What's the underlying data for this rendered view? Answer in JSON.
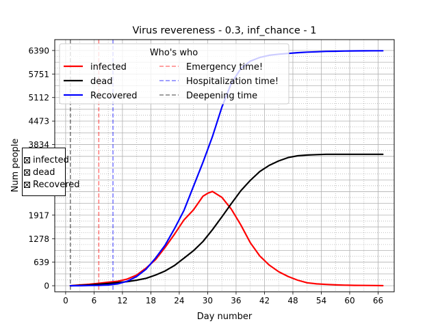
{
  "chart_data": {
    "type": "line",
    "title": "Virus revereness - 0.3, inf_chance - 1",
    "xlabel": "Day number",
    "ylabel": "Num people",
    "xlim": [
      -2.3,
      69.4
    ],
    "ylim": [
      -165,
      6685
    ],
    "xticks": [
      0,
      6,
      12,
      18,
      24,
      30,
      36,
      42,
      48,
      54,
      60,
      66
    ],
    "yticks": [
      0,
      639,
      1278,
      1917,
      2556,
      3195,
      3834,
      4473,
      5112,
      5751,
      6390
    ],
    "ytick_labels_shown": [
      "0",
      "639",
      "1278",
      "1917",
      "",
      "",
      "3834",
      "4473",
      "5112",
      "5751",
      "6390"
    ],
    "grid": true,
    "minor_grid": true,
    "legend_title": "Who's who",
    "legend_placement": "top-left",
    "series": [
      {
        "name": "infected",
        "color": "#ff0000",
        "x": [
          1,
          3,
          5,
          7,
          9,
          11,
          13,
          15,
          17,
          19,
          21,
          23,
          25,
          27,
          29,
          30,
          31,
          33,
          35,
          37,
          39,
          41,
          43,
          45,
          47,
          49,
          51,
          53,
          55,
          57,
          59,
          61,
          63,
          65,
          67
        ],
        "y": [
          0,
          20,
          40,
          65,
          95,
          120,
          180,
          290,
          480,
          710,
          1040,
          1400,
          1790,
          2060,
          2430,
          2510,
          2560,
          2400,
          2080,
          1650,
          1170,
          810,
          560,
          380,
          250,
          150,
          80,
          50,
          35,
          22,
          15,
          10,
          7,
          5,
          3
        ]
      },
      {
        "name": "dead",
        "color": "#000000",
        "x": [
          1,
          3,
          5,
          7,
          9,
          11,
          13,
          15,
          17,
          19,
          21,
          23,
          25,
          27,
          29,
          31,
          33,
          35,
          37,
          39,
          41,
          43,
          45,
          47,
          49,
          51,
          53,
          55,
          57,
          59,
          61,
          63,
          65,
          67
        ],
        "y": [
          0,
          10,
          20,
          40,
          60,
          85,
          110,
          150,
          200,
          290,
          400,
          550,
          750,
          950,
          1200,
          1520,
          1870,
          2230,
          2580,
          2860,
          3100,
          3270,
          3390,
          3480,
          3530,
          3550,
          3560,
          3570,
          3570,
          3570,
          3570,
          3570,
          3570,
          3570
        ]
      },
      {
        "name": "Recovered",
        "color": "#0000ff",
        "x": [
          1,
          3,
          5,
          7,
          9,
          11,
          13,
          15,
          17,
          19,
          21,
          23,
          25,
          27,
          29,
          31,
          33,
          35,
          37,
          39,
          41,
          43,
          45,
          47,
          49,
          51,
          53,
          55,
          57,
          59,
          61,
          63,
          65,
          67
        ],
        "y": [
          0,
          0,
          5,
          10,
          20,
          50,
          120,
          250,
          450,
          750,
          1100,
          1550,
          2050,
          2700,
          3350,
          4050,
          4850,
          5500,
          5900,
          6100,
          6200,
          6260,
          6290,
          6310,
          6330,
          6345,
          6355,
          6365,
          6370,
          6375,
          6378,
          6380,
          6382,
          6382
        ]
      }
    ],
    "vlines": [
      {
        "name": "Emergency time!",
        "x": 7,
        "color": "#ff0000",
        "style": "dashed",
        "alpha": 0.5
      },
      {
        "name": "Hospitalization time!",
        "x": 10,
        "color": "#0000ff",
        "style": "dashed",
        "alpha": 0.5
      },
      {
        "name": "Deepening time",
        "x": 1,
        "color": "#000000",
        "style": "dashed",
        "alpha": 0.5
      }
    ]
  },
  "checkboxes": [
    {
      "label": "infected",
      "checked": true
    },
    {
      "label": "dead",
      "checked": true
    },
    {
      "label": "Recovered",
      "checked": true
    }
  ]
}
